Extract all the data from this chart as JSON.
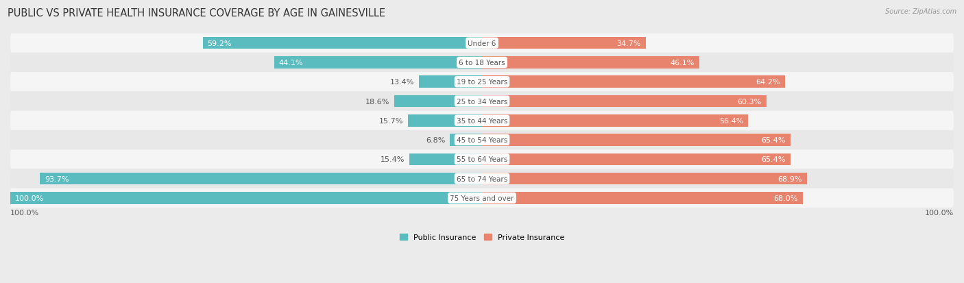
{
  "title": "PUBLIC VS PRIVATE HEALTH INSURANCE COVERAGE BY AGE IN GAINESVILLE",
  "source": "Source: ZipAtlas.com",
  "categories": [
    "Under 6",
    "6 to 18 Years",
    "19 to 25 Years",
    "25 to 34 Years",
    "35 to 44 Years",
    "45 to 54 Years",
    "55 to 64 Years",
    "65 to 74 Years",
    "75 Years and over"
  ],
  "public_values": [
    59.2,
    44.1,
    13.4,
    18.6,
    15.7,
    6.8,
    15.4,
    93.7,
    100.0
  ],
  "private_values": [
    34.7,
    46.1,
    64.2,
    60.3,
    56.4,
    65.4,
    65.4,
    68.9,
    68.0
  ],
  "public_color": "#5abcbe",
  "private_color": "#e8836e",
  "bg_color": "#ebebeb",
  "row_colors": [
    "#f5f5f5",
    "#e8e8e8"
  ],
  "bar_height": 0.62,
  "title_fontsize": 10.5,
  "label_fontsize": 8,
  "category_fontsize": 7.5,
  "legend_fontsize": 8,
  "source_fontsize": 7,
  "pub_label_inside_threshold": 25,
  "priv_label_inside_threshold": 25
}
